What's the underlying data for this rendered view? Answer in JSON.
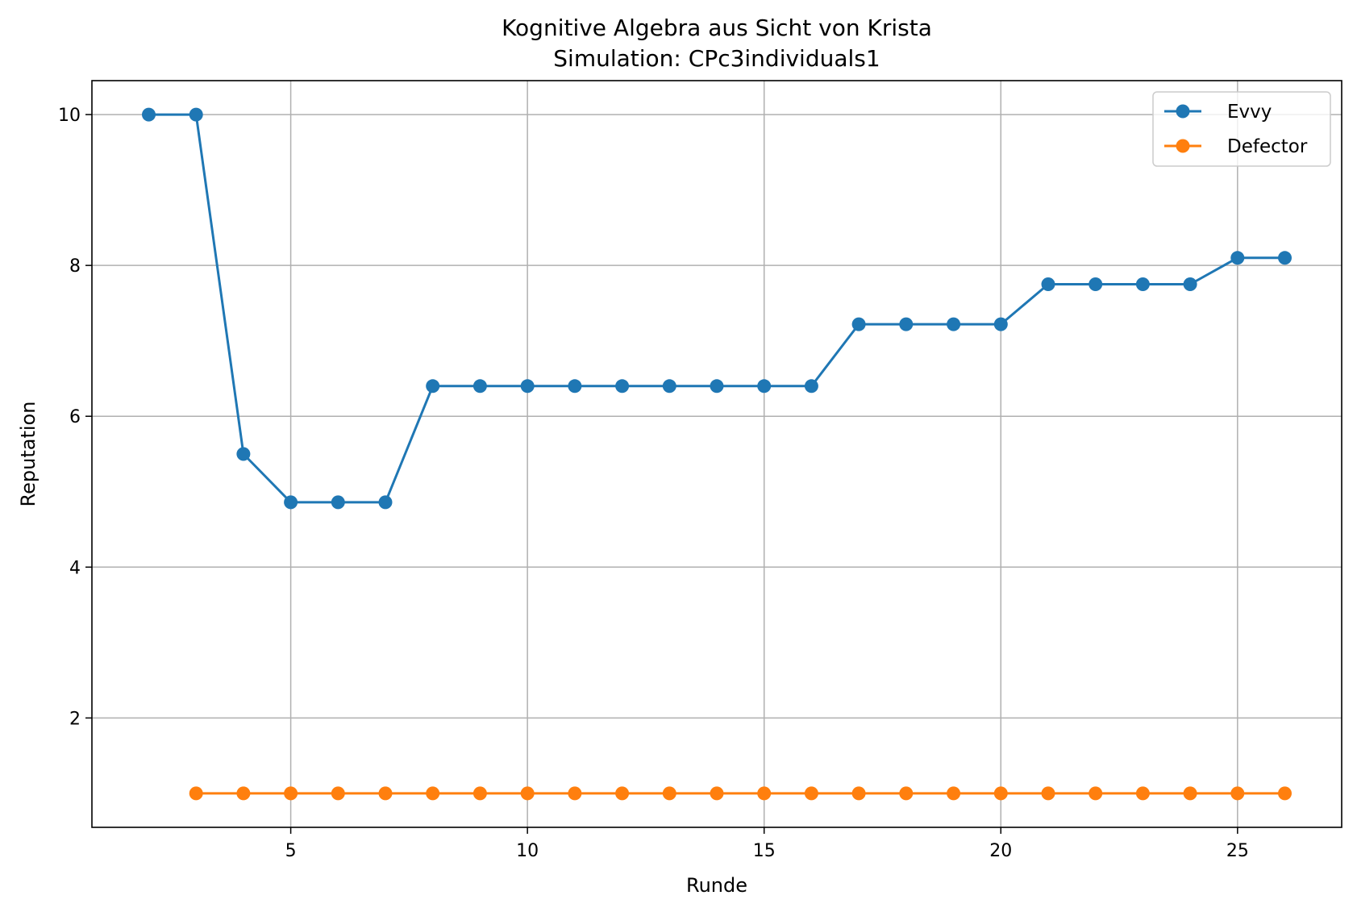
{
  "chart_data": {
    "type": "line",
    "title": "Kognitive Algebra aus Sicht von Krista",
    "subtitle": "Simulation: CPc3individuals1",
    "xlabel": "Runde",
    "ylabel": "Reputation",
    "xlim": [
      0.8,
      27.2
    ],
    "ylim": [
      0.55,
      10.45
    ],
    "xticks": [
      5,
      10,
      15,
      20,
      25
    ],
    "yticks": [
      2,
      4,
      6,
      8,
      10
    ],
    "grid": true,
    "legend_position": "upper-right",
    "series": [
      {
        "name": "Evvy",
        "color": "#1f77b4",
        "x": [
          2,
          3,
          4,
          5,
          6,
          7,
          8,
          9,
          10,
          11,
          12,
          13,
          14,
          15,
          16,
          17,
          18,
          19,
          20,
          21,
          22,
          23,
          24,
          25,
          26
        ],
        "y": [
          10,
          10,
          5.5,
          4.86,
          4.86,
          4.86,
          6.4,
          6.4,
          6.4,
          6.4,
          6.4,
          6.4,
          6.4,
          6.4,
          6.4,
          7.22,
          7.22,
          7.22,
          7.22,
          7.75,
          7.75,
          7.75,
          7.75,
          8.1,
          8.1
        ]
      },
      {
        "name": "Defector",
        "color": "#ff7f0e",
        "x": [
          3,
          4,
          5,
          6,
          7,
          8,
          9,
          10,
          11,
          12,
          13,
          14,
          15,
          16,
          17,
          18,
          19,
          20,
          21,
          22,
          23,
          24,
          25,
          26
        ],
        "y": [
          1,
          1,
          1,
          1,
          1,
          1,
          1,
          1,
          1,
          1,
          1,
          1,
          1,
          1,
          1,
          1,
          1,
          1,
          1,
          1,
          1,
          1,
          1,
          1
        ]
      }
    ]
  }
}
